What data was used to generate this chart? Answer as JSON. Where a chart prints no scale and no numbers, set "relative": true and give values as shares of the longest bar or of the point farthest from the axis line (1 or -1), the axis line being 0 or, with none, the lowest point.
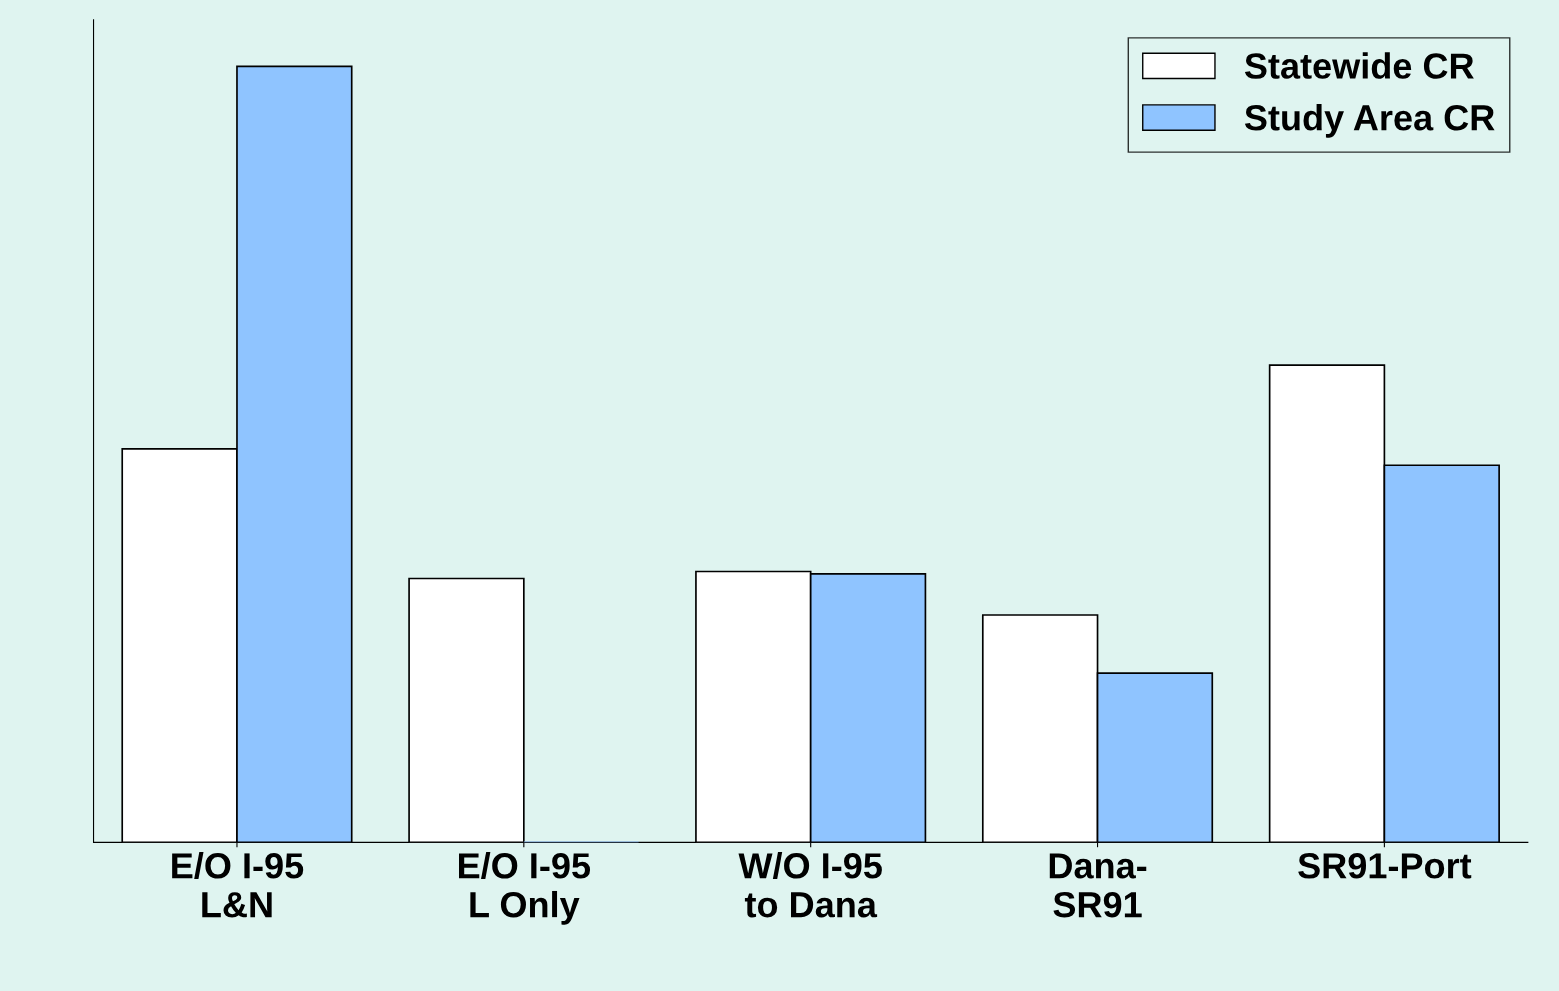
{
  "chart_data": {
    "type": "bar",
    "relative": true,
    "categories": [
      "E/O I-95\nL&N",
      "E/O I-95\nL Only",
      "W/O I-95\nto Dana",
      "Dana-\nSR91",
      "SR91-Port"
    ],
    "series": [
      {
        "name": "Statewide CR",
        "color": "#ffffff",
        "values": [
          0.507,
          0.34,
          0.349,
          0.293,
          0.615
        ]
      },
      {
        "name": "Study Area CR",
        "color": "#8fc4ff",
        "values": [
          1,
          0,
          0.346,
          0.218,
          0.486
        ]
      }
    ],
    "legend": "top right"
  }
}
